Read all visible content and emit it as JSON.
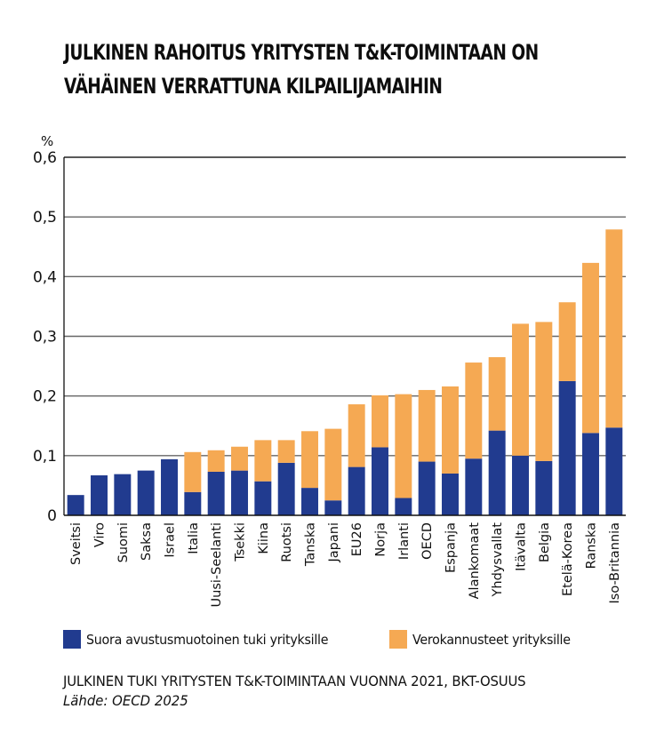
{
  "chart_data": {
    "type": "bar",
    "stacked": true,
    "title": "JULKINEN RAHOITUS YRITYSTEN T&K-TOIMINTAAN ON VÄHÄINEN VERRATTUNA KILPAILIJAMAIHIN",
    "title_lines": [
      "JULKINEN RAHOITUS YRITYSTEN T&K-TOIMINTAAN ON",
      "VÄHÄINEN VERRATTUNA KILPAILIJAMAIHIN"
    ],
    "xlabel": "",
    "ylabel": "%",
    "ylim": [
      0,
      0.6
    ],
    "yticks": [
      0,
      0.1,
      0.2,
      0.3,
      0.4,
      0.5,
      0.6
    ],
    "ytick_labels": [
      "0",
      "0,1",
      "0,2",
      "0,3",
      "0,4",
      "0,5",
      "0,6"
    ],
    "grid": true,
    "legend_position": "bottom",
    "categories": [
      "Sveitsi",
      "Viro",
      "Suomi",
      "Saksa",
      "Israel",
      "Italia",
      "Uusi-Seelanti",
      "Tsekki",
      "Kiina",
      "Ruotsi",
      "Tanska",
      "Japani",
      "EU26",
      "Norja",
      "Irlanti",
      "OECD",
      "Espanja",
      "Alankomaat",
      "Yhdysvallat",
      "Itävalta",
      "Belgia",
      "Etelä-Korea",
      "Ranska",
      "Iso-Britannia"
    ],
    "series": [
      {
        "name": "Suora avustusmuotoinen tuki yrityksille",
        "color": "#213b8f",
        "values": [
          0.034,
          0.067,
          0.069,
          0.075,
          0.094,
          0.039,
          0.073,
          0.075,
          0.057,
          0.088,
          0.046,
          0.025,
          0.081,
          0.114,
          0.029,
          0.09,
          0.07,
          0.095,
          0.142,
          0.1,
          0.091,
          0.225,
          0.138,
          0.147
        ]
      },
      {
        "name": "Verokannusteet yrityksille",
        "color": "#f5a953",
        "values": [
          0.0,
          0.0,
          0.0,
          0.0,
          0.0,
          0.067,
          0.036,
          0.04,
          0.069,
          0.038,
          0.095,
          0.12,
          0.105,
          0.087,
          0.174,
          0.12,
          0.146,
          0.161,
          0.123,
          0.221,
          0.233,
          0.132,
          0.285,
          0.332
        ]
      }
    ]
  },
  "legend": {
    "items": [
      {
        "label": "Suora avustusmuotoinen tuki yrityksille",
        "color": "#213b8f"
      },
      {
        "label": "Verokannusteet yrityksille",
        "color": "#f5a953"
      }
    ]
  },
  "caption": "JULKINEN TUKI YRITYSTEN T&K-TOIMINTAAN VUONNA 2021, BKT-OSUUS",
  "source": "Lähde: OECD 2025"
}
